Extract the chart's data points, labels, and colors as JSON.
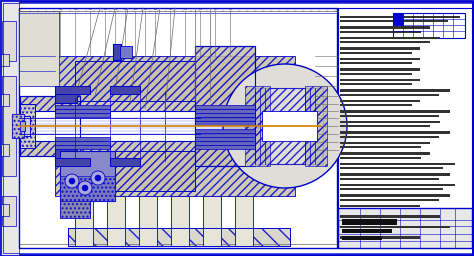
{
  "bg_color": "#ffffff",
  "paper_color": "#f0eeea",
  "blue": "#0000cc",
  "blue2": "#2222dd",
  "orange": "#d4820a",
  "gray_line": "#666666",
  "hatch_fill": "#c8c0a8",
  "white": "#ffffff",
  "light_gray": "#e0ddd8",
  "dark_hatch": "#b0a890",
  "blue_fill": "#4444aa",
  "blue_dark": "#000088"
}
